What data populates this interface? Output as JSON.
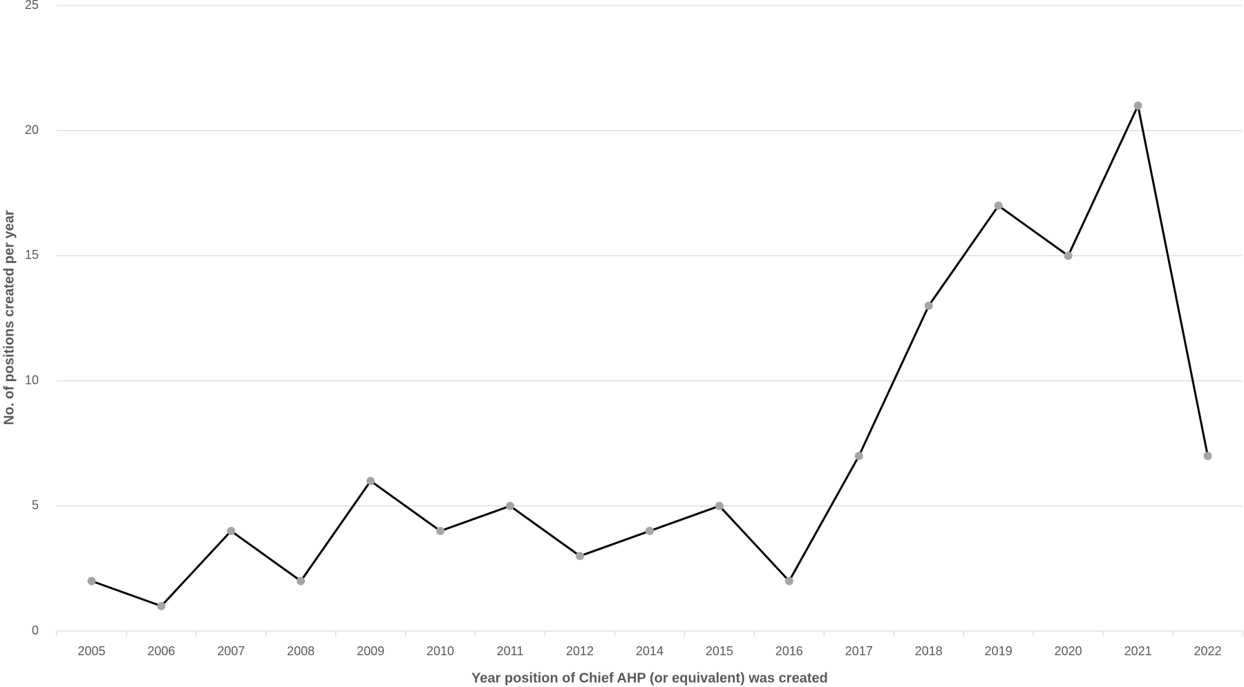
{
  "chart_data": {
    "type": "line",
    "x_label": "Year position of Chief AHP (or equivalent) was created",
    "y_label": "No. of positions created per year",
    "categories": [
      "2005",
      "2006",
      "2007",
      "2008",
      "2009",
      "2010",
      "2011",
      "2012",
      "2014",
      "2015",
      "2016",
      "2017",
      "2018",
      "2019",
      "2020",
      "2021",
      "2022"
    ],
    "values": [
      2,
      1,
      4,
      2,
      6,
      4,
      5,
      3,
      4,
      5,
      2,
      7,
      13,
      17,
      15,
      21,
      7
    ],
    "color": "#000000",
    "marker_color": "#a5a5a5",
    "ylim": [
      0,
      25
    ],
    "yticks": [
      0,
      5,
      10,
      15,
      20,
      25
    ],
    "grid": true
  }
}
